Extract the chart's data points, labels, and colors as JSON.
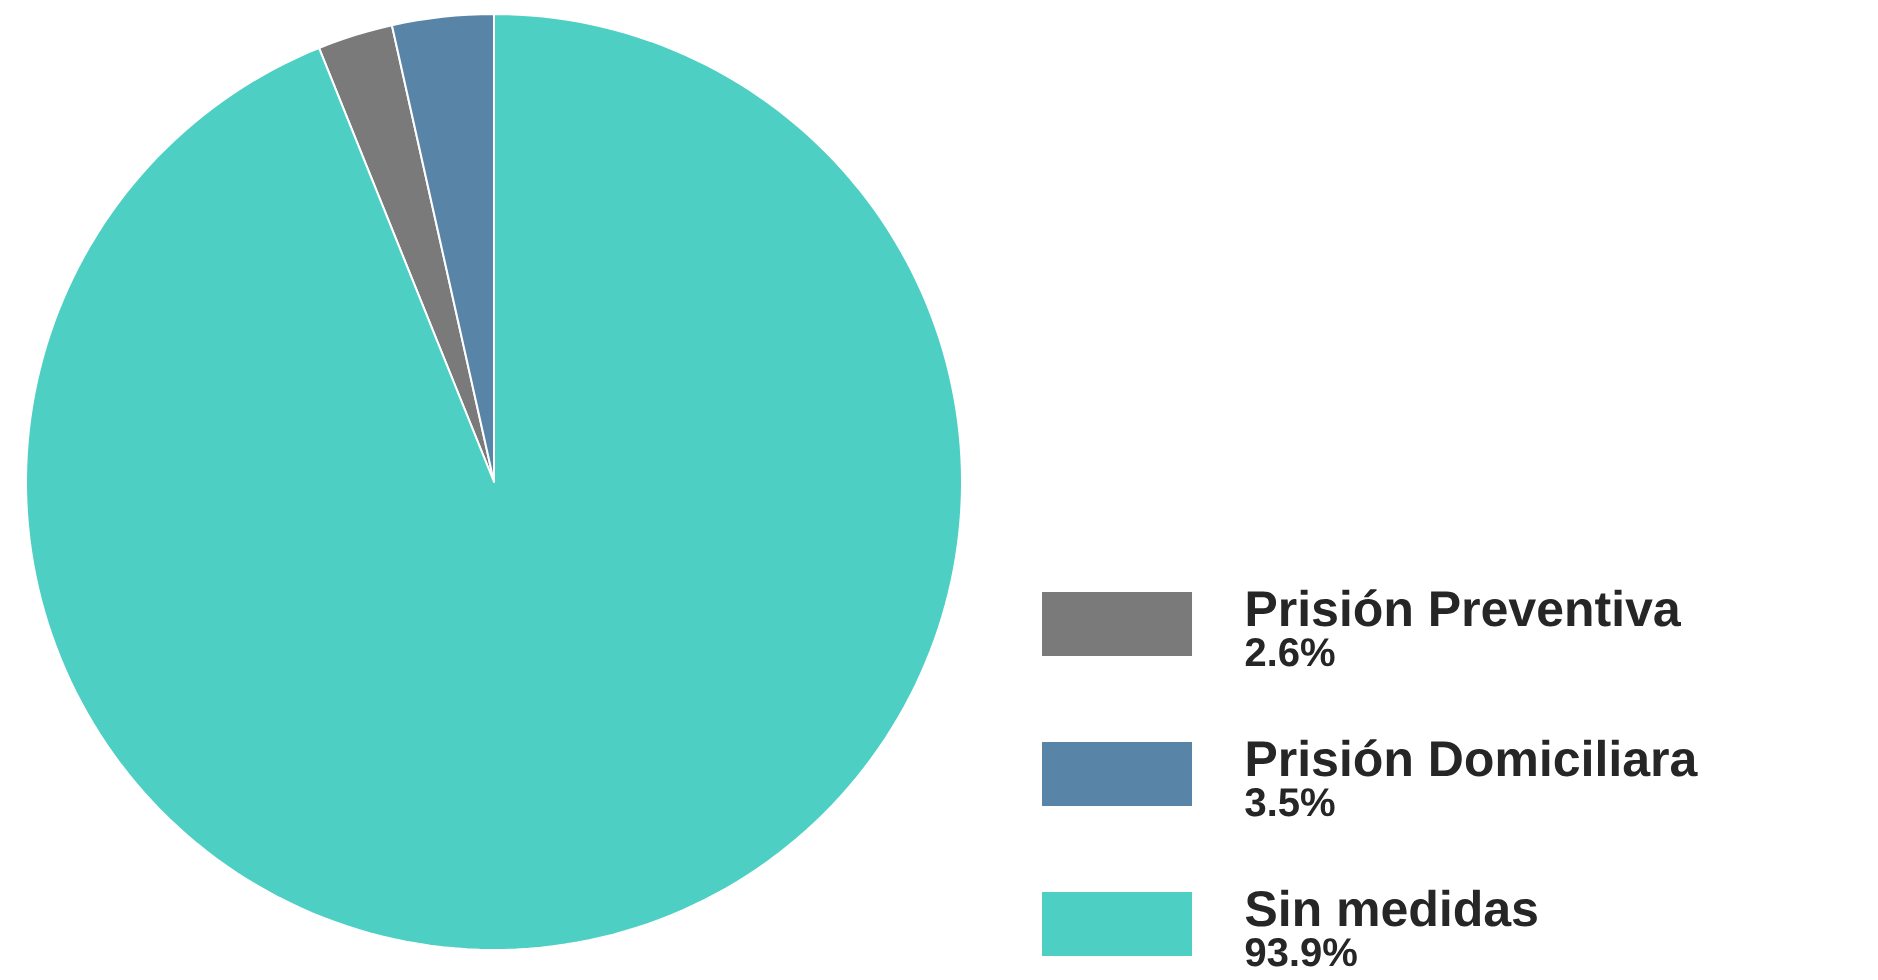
{
  "chart_data": {
    "type": "pie",
    "categories": [
      "Prisión Preventiva",
      "Prisión Domiciliara",
      "Sin medidas"
    ],
    "values": [
      2.6,
      3.5,
      93.9
    ],
    "value_labels": [
      "2.6%",
      "3.5%",
      "93.9%"
    ],
    "colors": [
      "#7a7a7a",
      "#5884a8",
      "#4ecfc4"
    ],
    "legend": "bottom right"
  }
}
